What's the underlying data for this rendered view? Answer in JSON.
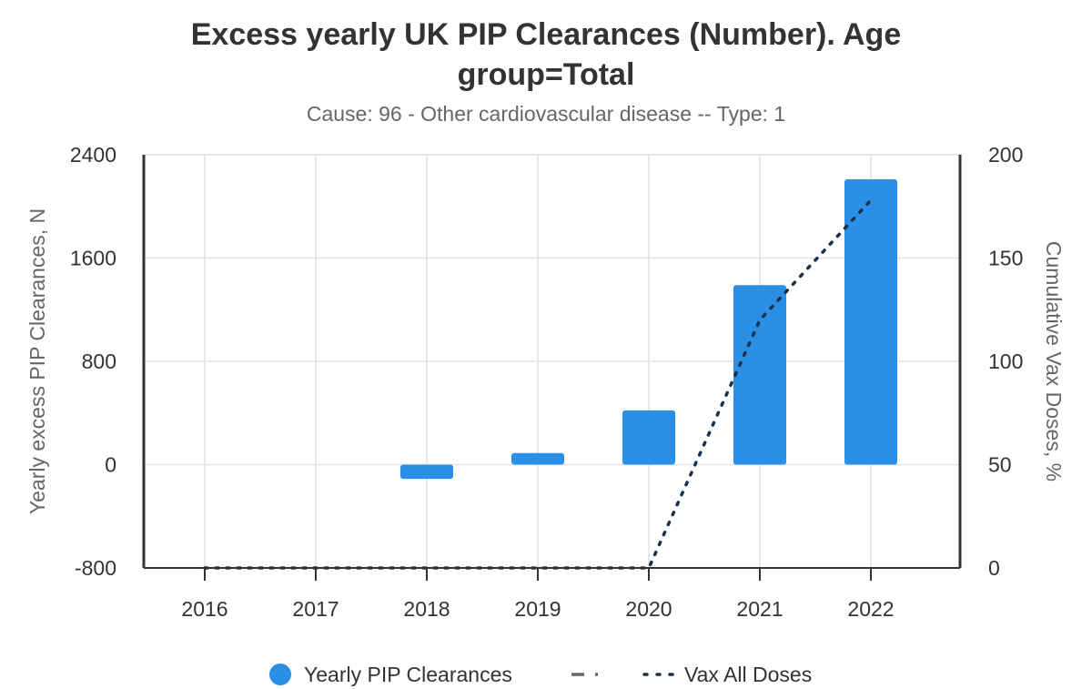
{
  "chart_data": {
    "type": "bar",
    "title_line1": "Excess yearly UK PIP Clearances (Number). Age",
    "title_line2": "group=Total",
    "subtitle": "Cause: 96 - Other cardiovascular disease -- Type: 1",
    "categories": [
      "2016",
      "2017",
      "2018",
      "2019",
      "2020",
      "2021",
      "2022"
    ],
    "series": [
      {
        "name": "Yearly PIP Clearances",
        "type": "bar",
        "axis": "left",
        "color": "#2b8fe6",
        "values": [
          0,
          0,
          -110,
          90,
          420,
          1390,
          2210
        ]
      },
      {
        "name": "Vax All Doses",
        "type": "line",
        "style": "dotted",
        "axis": "right",
        "color": "#17324d",
        "values": [
          0,
          0,
          0,
          0,
          0,
          120,
          178
        ]
      }
    ],
    "extra_legend_entry": {
      "name": "",
      "style": "dashdot",
      "color": "#666666"
    },
    "ylabel_left": "Yearly excess PIP Clearances, N",
    "ylabel_right": "Cumulative Vax Doses, %",
    "ylim_left": [
      -800,
      2400
    ],
    "ylim_right": [
      0,
      200
    ],
    "yticks_left": [
      "2400",
      "1600",
      "800",
      "0",
      "-800"
    ],
    "yticks_right": [
      "200",
      "150",
      "100",
      "50",
      "0"
    ],
    "grid": true,
    "legend_position": "bottom"
  }
}
